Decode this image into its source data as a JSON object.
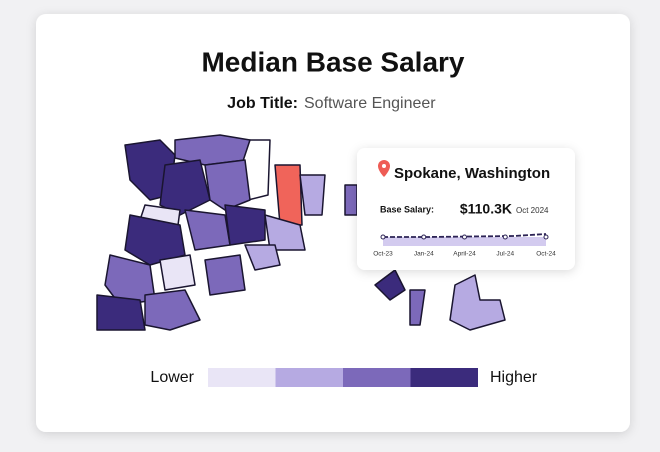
{
  "header": {
    "title": "Median Base Salary",
    "subtitle_label": "Job Title:",
    "subtitle_value": "Software Engineer"
  },
  "tooltip": {
    "location": "Spokane, Washington",
    "metric_label": "Base Salary:",
    "metric_value": "$110.3K",
    "metric_date": "Oct 2024",
    "axis_labels": [
      "Oct-23",
      "Jan-24",
      "April-24",
      "Jul-24",
      "Oct-24"
    ]
  },
  "legend": {
    "low_label": "Lower",
    "high_label": "Higher",
    "colors": [
      "#e9e5f6",
      "#b6aae2",
      "#7c69ba",
      "#3b2b7c"
    ]
  }
}
